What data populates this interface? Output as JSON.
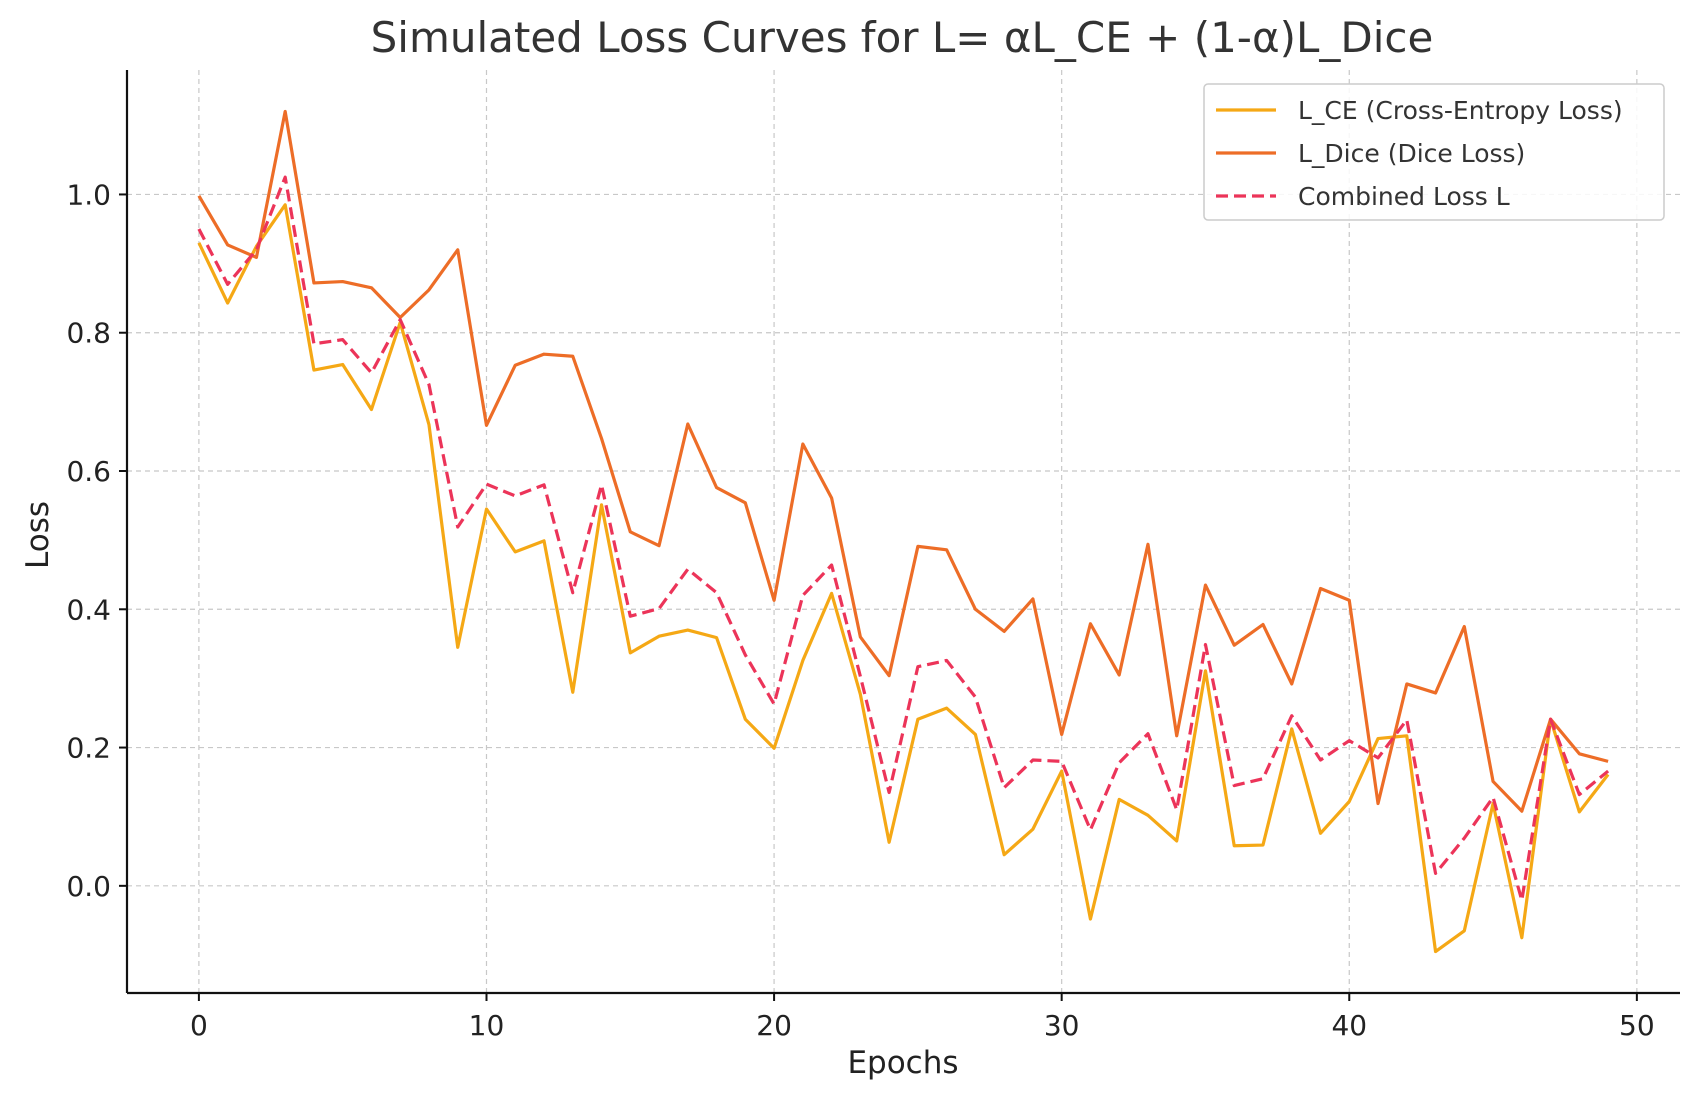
{
  "chart_data": {
    "type": "line",
    "title": "Simulated Loss Curves for L= αL_CE + (1-α)L_Dice",
    "xlabel": "Epochs",
    "ylabel": "Loss",
    "xlim": [
      -2.5,
      51.5
    ],
    "ylim": [
      -0.155,
      1.18
    ],
    "xticks": [
      0,
      10,
      20,
      30,
      40,
      50
    ],
    "yticks": [
      0.0,
      0.2,
      0.4,
      0.6,
      0.8,
      1.0
    ],
    "grid": true,
    "legend_position": "top-right",
    "x": [
      0,
      1,
      2,
      3,
      4,
      5,
      6,
      7,
      8,
      9,
      10,
      11,
      12,
      13,
      14,
      15,
      16,
      17,
      18,
      19,
      20,
      21,
      22,
      23,
      24,
      25,
      26,
      27,
      28,
      29,
      30,
      31,
      32,
      33,
      34,
      35,
      36,
      37,
      38,
      39,
      40,
      41,
      42,
      43,
      44,
      45,
      46,
      47,
      48,
      49
    ],
    "series": [
      {
        "name": "L_CE (Cross-Entropy Loss)",
        "color": "#f5a815",
        "dash": "solid",
        "values": [
          0.93,
          0.843,
          0.925,
          0.985,
          0.746,
          0.754,
          0.689,
          0.815,
          0.667,
          0.345,
          0.545,
          0.483,
          0.499,
          0.28,
          0.551,
          0.337,
          0.361,
          0.37,
          0.359,
          0.241,
          0.199,
          0.326,
          0.423,
          0.277,
          0.063,
          0.241,
          0.257,
          0.219,
          0.045,
          0.082,
          0.166,
          -0.048,
          0.125,
          0.102,
          0.065,
          0.311,
          0.058,
          0.059,
          0.227,
          0.076,
          0.122,
          0.213,
          0.217,
          -0.095,
          -0.065,
          0.119,
          -0.075,
          0.241,
          0.107,
          0.161
        ]
      },
      {
        "name": "L_Dice (Dice Loss)",
        "color": "#ed6d27",
        "dash": "solid",
        "values": [
          0.998,
          0.927,
          0.909,
          1.12,
          0.872,
          0.874,
          0.865,
          0.822,
          0.862,
          0.92,
          0.666,
          0.753,
          0.769,
          0.766,
          0.647,
          0.512,
          0.492,
          0.668,
          0.576,
          0.554,
          0.413,
          0.639,
          0.561,
          0.36,
          0.304,
          0.491,
          0.486,
          0.4,
          0.368,
          0.415,
          0.219,
          0.379,
          0.305,
          0.494,
          0.217,
          0.435,
          0.348,
          0.378,
          0.292,
          0.43,
          0.413,
          0.119,
          0.292,
          0.279,
          0.375,
          0.151,
          0.108,
          0.241,
          0.191,
          0.18
        ]
      },
      {
        "name": "Combined Loss L",
        "color": "#ec3459",
        "dash": "dashed",
        "values": [
          0.95,
          0.87,
          0.92,
          1.025,
          0.784,
          0.79,
          0.742,
          0.819,
          0.725,
          0.519,
          0.581,
          0.564,
          0.58,
          0.424,
          0.58,
          0.39,
          0.401,
          0.458,
          0.424,
          0.334,
          0.263,
          0.42,
          0.464,
          0.303,
          0.135,
          0.317,
          0.326,
          0.273,
          0.142,
          0.182,
          0.18,
          0.081,
          0.178,
          0.22,
          0.11,
          0.349,
          0.145,
          0.155,
          0.246,
          0.182,
          0.21,
          0.185,
          0.24,
          0.018,
          0.069,
          0.128,
          -0.021,
          0.241,
          0.132,
          0.166
        ]
      }
    ]
  }
}
